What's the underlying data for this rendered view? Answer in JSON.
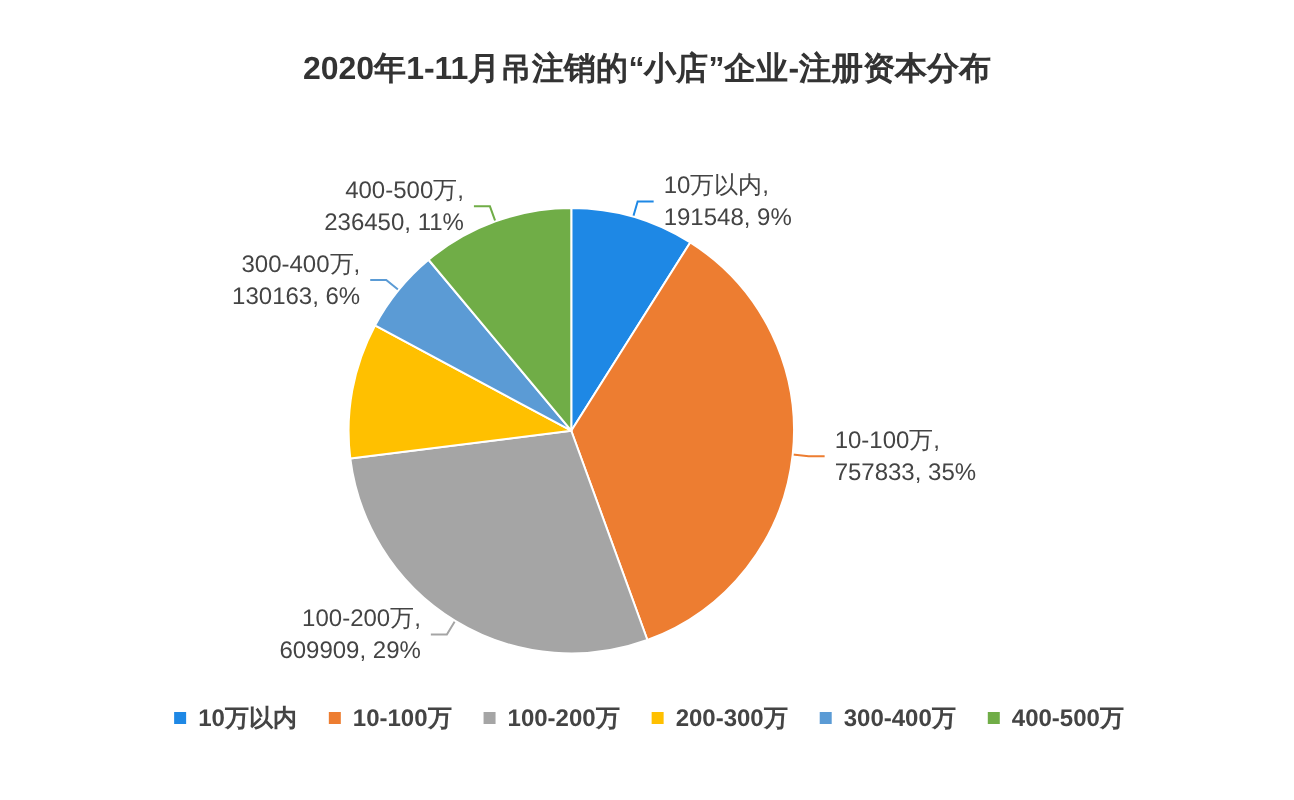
{
  "chart_data": {
    "type": "pie",
    "title": "2020年1-11月吊注销的“小店”企业-注册资本分布",
    "categories": [
      "10万以内",
      "10-100万",
      "100-200万",
      "200-300万",
      "300-400万",
      "400-500万"
    ],
    "values": [
      191548,
      757833,
      609909,
      210000,
      130163,
      236450
    ],
    "colors": [
      "#1e88e5",
      "#ed7d31",
      "#a5a5a5",
      "#ffc000",
      "#5b9bd5",
      "#70ad47"
    ],
    "value_labels": [
      "10万以内,\n191548, 9%",
      "10-100万,\n757833, 35%",
      "100-200万,\n609909, 29%",
      null,
      "300-400万,\n130163, 6%",
      "400-500万,\n236450, 11%"
    ],
    "legend": "bottom"
  }
}
